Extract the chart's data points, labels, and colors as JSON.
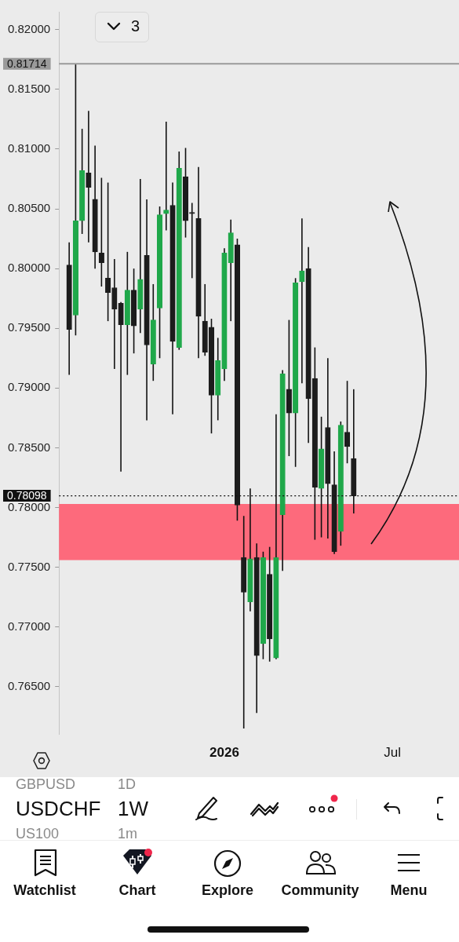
{
  "chart_data": {
    "type": "candlestick",
    "x": [
      "2025-07-21",
      "2025-07-28",
      "2025-08-04",
      "2025-08-11",
      "2025-08-18",
      "2025-08-25",
      "2025-09-01",
      "2025-09-08",
      "2025-09-15",
      "2025-09-22",
      "2025-09-29",
      "2025-10-06",
      "2025-10-13",
      "2025-10-20",
      "2025-10-27",
      "2025-11-03",
      "2025-11-10",
      "2025-11-17",
      "2025-11-24",
      "2025-12-01",
      "2025-12-08",
      "2025-12-15",
      "2025-12-22",
      "2025-12-29",
      "2026-01-05",
      "2026-01-12",
      "2026-01-19",
      "2026-01-26",
      "2026-02-02",
      "2026-02-09",
      "2026-02-16",
      "2026-02-23",
      "2026-03-02",
      "2026-03-09",
      "2026-03-16",
      "2026-03-23",
      "2026-03-30",
      "2026-04-06",
      "2026-04-13",
      "2026-04-20",
      "2026-04-27",
      "2026-05-04",
      "2026-05-11",
      "2026-05-18",
      "2026-05-25"
    ],
    "ohlc": [
      [
        0.8003,
        0.8022,
        0.7911,
        0.7949
      ],
      [
        0.7961,
        0.81714,
        0.7944,
        0.804
      ],
      [
        0.804,
        0.8117,
        0.8029,
        0.8082
      ],
      [
        0.808,
        0.8132,
        0.8022,
        0.8068
      ],
      [
        0.8058,
        0.8103,
        0.8,
        0.8014
      ],
      [
        0.8013,
        0.8076,
        0.7985,
        0.8005
      ],
      [
        0.7992,
        0.8072,
        0.7956,
        0.798
      ],
      [
        0.7984,
        0.8008,
        0.7916,
        0.7966
      ],
      [
        0.7971,
        0.7972,
        0.783,
        0.7953
      ],
      [
        0.7953,
        0.8014,
        0.7911,
        0.7982
      ],
      [
        0.7982,
        0.8,
        0.7929,
        0.7952
      ],
      [
        0.7966,
        0.8075,
        0.7946,
        0.7991
      ],
      [
        0.8011,
        0.8058,
        0.7873,
        0.7936
      ],
      [
        0.792,
        0.7987,
        0.7906,
        0.7957
      ],
      [
        0.7967,
        0.8052,
        0.7925,
        0.8045
      ],
      [
        0.8046,
        0.8123,
        0.8032,
        0.8049
      ],
      [
        0.8053,
        0.8072,
        0.7878,
        0.7939
      ],
      [
        0.7934,
        0.8098,
        0.7932,
        0.8084
      ],
      [
        0.8077,
        0.8101,
        0.8026,
        0.804
      ],
      [
        0.8047,
        0.8055,
        0.7992,
        0.8046
      ],
      [
        0.8042,
        0.8085,
        0.7925,
        0.796
      ],
      [
        0.7956,
        0.7987,
        0.7927,
        0.793
      ],
      [
        0.7951,
        0.7958,
        0.7862,
        0.7894
      ],
      [
        0.7894,
        0.7942,
        0.7873,
        0.7923
      ],
      [
        0.7916,
        0.8017,
        0.7906,
        0.8013
      ],
      [
        0.8005,
        0.8041,
        0.7956,
        0.803
      ],
      [
        0.802,
        0.8025,
        0.7789,
        0.7802
      ],
      [
        0.7758,
        0.7793,
        0.7615,
        0.7729
      ],
      [
        0.7721,
        0.7816,
        0.7713,
        0.7757
      ],
      [
        0.7758,
        0.777,
        0.7628,
        0.7676
      ],
      [
        0.7686,
        0.7763,
        0.7673,
        0.7758
      ],
      [
        0.7744,
        0.7767,
        0.7671,
        0.769
      ],
      [
        0.7674,
        0.7878,
        0.7673,
        0.7758
      ],
      [
        0.7794,
        0.7915,
        0.7747,
        0.7912
      ],
      [
        0.7899,
        0.7957,
        0.7843,
        0.7879
      ],
      [
        0.7879,
        0.7992,
        0.7834,
        0.7988
      ],
      [
        0.7989,
        0.8042,
        0.7904,
        0.7998
      ],
      [
        0.8,
        0.8018,
        0.7854,
        0.7891
      ],
      [
        0.7908,
        0.7934,
        0.7773,
        0.7817
      ],
      [
        0.7816,
        0.7876,
        0.7775,
        0.7849
      ],
      [
        0.7867,
        0.7925,
        0.7774,
        0.782
      ],
      [
        0.7819,
        0.7847,
        0.7761,
        0.7763
      ],
      [
        0.778,
        0.7872,
        0.7768,
        0.7869
      ],
      [
        0.7863,
        0.7906,
        0.7837,
        0.7851
      ],
      [
        0.7841,
        0.7899,
        0.7795,
        0.78098
      ]
    ],
    "colors": [
      "#1c1c1c",
      "#1fa84a",
      "#1fa84a",
      "#1c1c1c",
      "#1c1c1c",
      "#1c1c1c",
      "#1c1c1c",
      "#1c1c1c",
      "#1c1c1c",
      "#1fa84a",
      "#1c1c1c",
      "#1fa84a",
      "#1c1c1c",
      "#1fa84a",
      "#1fa84a",
      "#1fa84a",
      "#1c1c1c",
      "#1fa84a",
      "#1c1c1c",
      "#1c1c1c",
      "#1c1c1c",
      "#1c1c1c",
      "#1c1c1c",
      "#1fa84a",
      "#1fa84a",
      "#1fa84a",
      "#1c1c1c",
      "#1c1c1c",
      "#1fa84a",
      "#1c1c1c",
      "#1fa84a",
      "#1c1c1c",
      "#1fa84a",
      "#1fa84a",
      "#1c1c1c",
      "#1fa84a",
      "#1fa84a",
      "#1c1c1c",
      "#1c1c1c",
      "#1fa84a",
      "#1c1c1c",
      "#1c1c1c",
      "#1fa84a",
      "#1c1c1c",
      "#1c1c1c"
    ],
    "xlim": [
      "2025-07-10",
      "2026-09-16"
    ],
    "xticks": [
      {
        "value": "2026-01-05",
        "label": "2026"
      },
      {
        "value": "2026-07-06",
        "label": "Jul"
      }
    ],
    "ylim": [
      0.761,
      0.8215
    ],
    "yticks": [
      {
        "value": 0.765,
        "label": "0.76500"
      },
      {
        "value": 0.77,
        "label": "0.77000"
      },
      {
        "value": 0.775,
        "label": "0.77500"
      },
      {
        "value": 0.78,
        "label": "0.78000"
      },
      {
        "value": 0.785,
        "label": "0.78500"
      },
      {
        "value": 0.79,
        "label": "0.79000"
      },
      {
        "value": 0.795,
        "label": "0.79500"
      },
      {
        "value": 0.8,
        "label": "0.80000"
      },
      {
        "value": 0.805,
        "label": "0.80500"
      },
      {
        "value": 0.81,
        "label": "0.81000"
      },
      {
        "value": 0.815,
        "label": "0.81500"
      },
      {
        "value": 0.82,
        "label": "0.82000"
      }
    ],
    "ref_lines": [
      {
        "axis": "y",
        "value": 0.81714,
        "label": "0.81714",
        "color": "#9a9a9a",
        "line_style": "solid"
      },
      {
        "axis": "y",
        "value": 0.78098,
        "label": "0.78098",
        "color": "#111111",
        "line_style": "dotted"
      }
    ],
    "bands": [
      {
        "axis": "y",
        "from": 0.7756,
        "to": 0.7803,
        "color": "#fd6a7c"
      }
    ],
    "annotations": [
      "3",
      "GBPUSD",
      "1D",
      "USDCHF",
      "1W",
      "US100",
      "1m",
      "Watchlist",
      "Chart",
      "Explore",
      "Community",
      "Menu"
    ]
  }
}
